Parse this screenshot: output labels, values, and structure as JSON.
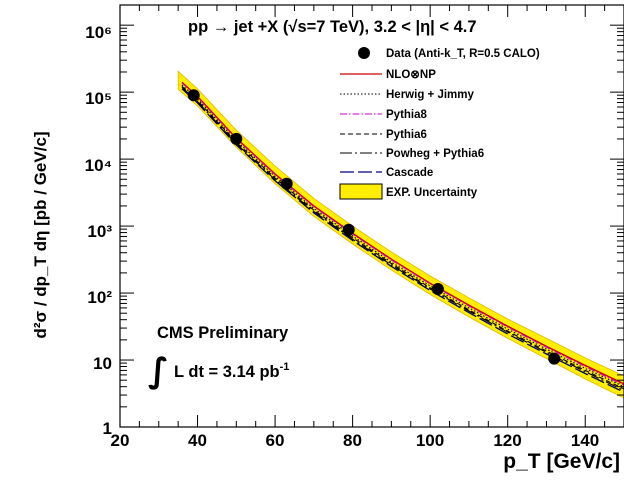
{
  "chart_data": {
    "type": "line",
    "title": "pp → jet +X (√s=7 TeV), 3.2 < |η| < 4.7",
    "xlabel": "p_T [GeV/c]",
    "ylabel": "d²σ / dp_T dη [pb / GeV/c]",
    "xlim": [
      20,
      150
    ],
    "ylim": [
      1,
      2000000
    ],
    "yscale": "log",
    "x_ticks": [
      "20",
      "40",
      "60",
      "80",
      "100",
      "120",
      "140"
    ],
    "y_ticks": [
      "1",
      "10",
      "10²",
      "10³",
      "10⁴",
      "10⁵",
      "10⁶"
    ],
    "annotations": {
      "experiment": "CMS Preliminary",
      "lumi_prefix": "L dt = 3.14 pb",
      "lumi_exponent": "-1"
    },
    "legend_position": "top-right",
    "legend": [
      {
        "label": "Data (Anti-k_T, R=0.5 CALO)",
        "style": "marker"
      },
      {
        "label": "NLO⊗NP",
        "style": "solid",
        "color": "#cc0000"
      },
      {
        "label": "Herwig + Jimmy",
        "style": "dotted",
        "color": "#000000"
      },
      {
        "label": "Pythia8",
        "style": "dashdot",
        "color": "#cc00cc"
      },
      {
        "label": "Pythia6",
        "style": "dashed",
        "color": "#000000"
      },
      {
        "label": "Powheg + Pythia6",
        "style": "longdashdot",
        "color": "#000000"
      },
      {
        "label": "Cascade",
        "style": "longdash",
        "color": "#000080"
      },
      {
        "label": "EXP. Uncertainty",
        "style": "band",
        "color": "#ffee00"
      }
    ],
    "data_points": {
      "x": [
        39,
        50,
        63,
        79,
        102,
        132
      ],
      "y": [
        90000,
        20000,
        4300,
        880,
        115,
        10.5
      ]
    },
    "band": {
      "x": [
        35,
        40,
        50,
        60,
        70,
        80,
        90,
        100,
        110,
        120,
        130,
        140,
        150
      ],
      "low": [
        110000,
        62000,
        15000,
        4300,
        1400,
        540,
        220,
        95,
        44,
        21,
        10.5,
        5.2,
        2.7
      ],
      "high": [
        205000,
        112000,
        27000,
        7900,
        2600,
        1000,
        410,
        180,
        85,
        41,
        21,
        10.8,
        5.8
      ]
    },
    "series": [
      {
        "name": "NLO⊗NP",
        "x": [
          36,
          40,
          50,
          60,
          70,
          80,
          90,
          100,
          110,
          120,
          130,
          140,
          150
        ],
        "y": [
          140000,
          86000,
          20500,
          6000,
          2000,
          780,
          320,
          140,
          66,
          32,
          16,
          8.3,
          4.4
        ]
      },
      {
        "name": "Herwig + Jimmy",
        "x": [
          36,
          40,
          50,
          60,
          70,
          80,
          90,
          100,
          110,
          120,
          130,
          140,
          150
        ],
        "y": [
          128000,
          79000,
          18800,
          5500,
          1830,
          710,
          290,
          128,
          60,
          29,
          14.5,
          7.5,
          4.0
        ]
      },
      {
        "name": "Pythia8",
        "x": [
          36,
          40,
          50,
          60,
          70,
          80,
          90,
          100,
          110,
          120,
          130,
          140,
          150
        ],
        "y": [
          138000,
          84000,
          20000,
          5850,
          1950,
          760,
          312,
          137,
          64,
          31,
          15.5,
          8.0,
          4.2
        ]
      },
      {
        "name": "Pythia6",
        "x": [
          36,
          40,
          50,
          60,
          70,
          80,
          90,
          100,
          110,
          120,
          130,
          140,
          150
        ],
        "y": [
          122000,
          75000,
          17800,
          5200,
          1730,
          670,
          275,
          120,
          56,
          27,
          13.6,
          7.0,
          3.7
        ]
      },
      {
        "name": "Powheg + Pythia6",
        "x": [
          36,
          40,
          50,
          60,
          70,
          80,
          90,
          100,
          110,
          120,
          130,
          140,
          150
        ],
        "y": [
          118000,
          72000,
          17000,
          4950,
          1650,
          640,
          262,
          115,
          54,
          26,
          13.0,
          6.7,
          3.5
        ]
      },
      {
        "name": "Cascade",
        "x": [
          36,
          40,
          50,
          60,
          70,
          80,
          90,
          100,
          110,
          120,
          130,
          140,
          150
        ],
        "y": [
          112000,
          69000,
          16300,
          4750,
          1580,
          610,
          250,
          109,
          51,
          24.5,
          12.3,
          6.3,
          3.3
        ]
      }
    ]
  }
}
